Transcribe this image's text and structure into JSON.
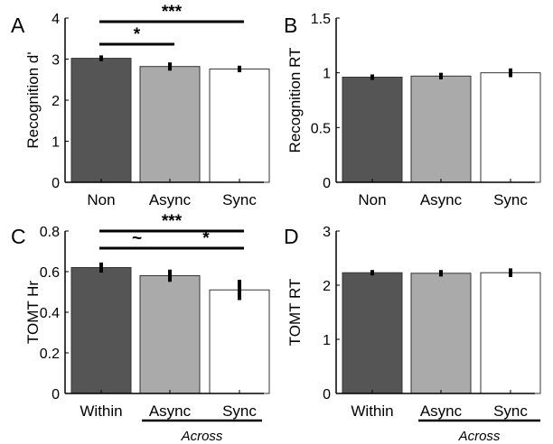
{
  "chart_data": [
    {
      "panel": "A",
      "type": "bar",
      "categories": [
        "Non",
        "Async",
        "Sync"
      ],
      "values": [
        3.02,
        2.82,
        2.76
      ],
      "errors": [
        0.07,
        0.1,
        0.08
      ],
      "ylabel": "Recognition d'",
      "ylim": [
        0,
        4
      ],
      "yticks": [
        "0",
        "1",
        "2",
        "3",
        "4"
      ],
      "colors": [
        "#555555",
        "#aaaaaa",
        "#ffffff"
      ],
      "grid": false,
      "significance": [
        {
          "from": 0,
          "to": 1,
          "label": "*"
        },
        {
          "from": 0,
          "to": 2,
          "label": "***"
        }
      ]
    },
    {
      "panel": "B",
      "type": "bar",
      "categories": [
        "Non",
        "Async",
        "Sync"
      ],
      "values": [
        0.96,
        0.97,
        1.0
      ],
      "errors": [
        0.025,
        0.03,
        0.04
      ],
      "ylabel": "Recognition RT",
      "ylim": [
        0,
        1.5
      ],
      "yticks": [
        "0",
        "0.5",
        "1",
        "1.5"
      ],
      "colors": [
        "#555555",
        "#aaaaaa",
        "#ffffff"
      ],
      "grid": false,
      "significance": []
    },
    {
      "panel": "C",
      "type": "bar",
      "categories": [
        "Within",
        "Async",
        "Sync"
      ],
      "values": [
        0.62,
        0.58,
        0.51
      ],
      "errors": [
        0.025,
        0.03,
        0.05
      ],
      "ylabel": "TOMT Hr",
      "ylim": [
        0,
        0.8
      ],
      "yticks": [
        "0",
        "0.2",
        "0.4",
        "0.6",
        "0.8"
      ],
      "colors": [
        "#555555",
        "#aaaaaa",
        "#ffffff"
      ],
      "grid": false,
      "significance": [
        {
          "from": 0,
          "to": 1,
          "label": "~"
        },
        {
          "from": 1,
          "to": 2,
          "label": "*"
        },
        {
          "from": 0,
          "to": 2,
          "label": "***"
        }
      ],
      "group_label": "Across"
    },
    {
      "panel": "D",
      "type": "bar",
      "categories": [
        "Within",
        "Async",
        "Sync"
      ],
      "values": [
        2.23,
        2.22,
        2.23
      ],
      "errors": [
        0.05,
        0.06,
        0.08
      ],
      "ylabel": "TOMT RT",
      "ylim": [
        0,
        3
      ],
      "yticks": [
        "0",
        "1",
        "2",
        "3"
      ],
      "colors": [
        "#555555",
        "#aaaaaa",
        "#ffffff"
      ],
      "grid": false,
      "significance": [],
      "group_label": "Across"
    }
  ]
}
